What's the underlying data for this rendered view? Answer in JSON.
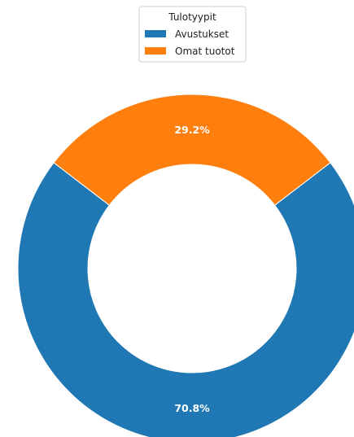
{
  "chart_data": {
    "type": "pie",
    "variant": "donut",
    "legend_title": "Tulotyypit",
    "legend_placement": "top-center",
    "series": [
      {
        "name": "Avustukset",
        "value": 70.8,
        "label": "70.8%",
        "color": "#1f77b4"
      },
      {
        "name": "Omat tuotot",
        "value": 29.2,
        "label": "29.2%",
        "color": "#ff7f0e"
      }
    ]
  }
}
